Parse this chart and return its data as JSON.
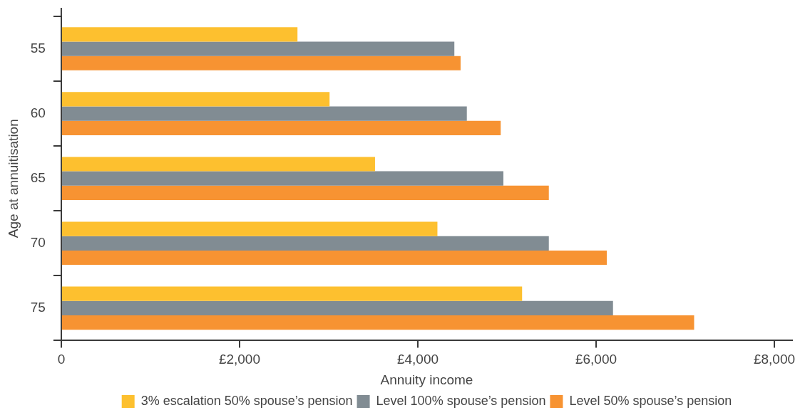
{
  "chart_data": {
    "type": "bar",
    "orientation": "horizontal",
    "xlabel": "Annuity income",
    "ylabel": "Age at annuitisation",
    "categories": [
      "55",
      "60",
      "65",
      "70",
      "75"
    ],
    "series": [
      {
        "name": "3% escalation 50% spouse’s pension",
        "color": "#fdc02f",
        "values": [
          2650,
          3010,
          3520,
          4220,
          5170
        ]
      },
      {
        "name": "Level 100% spouse’s pension",
        "color": "#818c93",
        "values": [
          4410,
          4550,
          4960,
          5470,
          6190
        ]
      },
      {
        "name": "Level 50% spouse’s pension",
        "color": "#f79332",
        "values": [
          4480,
          4930,
          5470,
          6120,
          7100
        ]
      }
    ],
    "xlim": [
      0,
      8200
    ],
    "xticks": [
      0,
      {
        "value": 2000,
        "label": "£2,000"
      },
      {
        "value": 4000,
        "label": "£4,000"
      },
      {
        "value": 6000,
        "label": "£6,000"
      },
      {
        "value": 8000,
        "label": "£8,000"
      }
    ],
    "legend": "bottom"
  }
}
